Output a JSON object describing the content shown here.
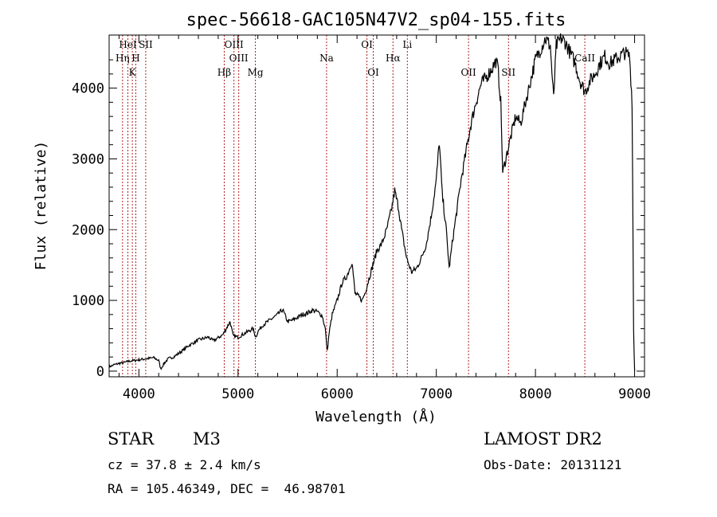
{
  "chart_data": {
    "type": "line",
    "title": "spec-56618-GAC105N47V2_sp04-155.fits",
    "xlabel": "Wavelength (Å)",
    "ylabel": "Flux (relative)",
    "xlim": [
      3700,
      9100
    ],
    "ylim": [
      -80,
      4750
    ],
    "x_ticks": [
      4000,
      5000,
      6000,
      7000,
      8000,
      9000
    ],
    "y_ticks": [
      0,
      1000,
      2000,
      3000,
      4000
    ],
    "grid": false,
    "series": [
      {
        "color": "#000000",
        "points": [
          [
            3700,
            60
          ],
          [
            3750,
            90
          ],
          [
            3800,
            110
          ],
          [
            3850,
            120
          ],
          [
            3900,
            140
          ],
          [
            3950,
            150
          ],
          [
            4000,
            160
          ],
          [
            4050,
            170
          ],
          [
            4100,
            180
          ],
          [
            4150,
            190
          ],
          [
            4200,
            150
          ],
          [
            4220,
            30
          ],
          [
            4260,
            120
          ],
          [
            4300,
            180
          ],
          [
            4350,
            200
          ],
          [
            4400,
            250
          ],
          [
            4450,
            300
          ],
          [
            4500,
            360
          ],
          [
            4550,
            400
          ],
          [
            4600,
            440
          ],
          [
            4650,
            460
          ],
          [
            4700,
            480
          ],
          [
            4750,
            430
          ],
          [
            4800,
            470
          ],
          [
            4850,
            520
          ],
          [
            4880,
            600
          ],
          [
            4920,
            700
          ],
          [
            4950,
            500
          ],
          [
            5000,
            480
          ],
          [
            5050,
            520
          ],
          [
            5100,
            560
          ],
          [
            5150,
            600
          ],
          [
            5180,
            480
          ],
          [
            5200,
            560
          ],
          [
            5250,
            650
          ],
          [
            5300,
            700
          ],
          [
            5350,
            750
          ],
          [
            5400,
            800
          ],
          [
            5450,
            870
          ],
          [
            5500,
            700
          ],
          [
            5550,
            720
          ],
          [
            5600,
            760
          ],
          [
            5650,
            800
          ],
          [
            5700,
            820
          ],
          [
            5750,
            860
          ],
          [
            5800,
            840
          ],
          [
            5850,
            780
          ],
          [
            5880,
            600
          ],
          [
            5900,
            280
          ],
          [
            5920,
            550
          ],
          [
            5950,
            800
          ],
          [
            6000,
            1000
          ],
          [
            6050,
            1250
          ],
          [
            6100,
            1350
          ],
          [
            6150,
            1550
          ],
          [
            6180,
            1100
          ],
          [
            6220,
            1050
          ],
          [
            6250,
            1000
          ],
          [
            6280,
            1100
          ],
          [
            6320,
            1300
          ],
          [
            6360,
            1500
          ],
          [
            6400,
            1700
          ],
          [
            6450,
            1800
          ],
          [
            6500,
            2000
          ],
          [
            6550,
            2300
          ],
          [
            6580,
            2550
          ],
          [
            6620,
            2300
          ],
          [
            6650,
            2000
          ],
          [
            6700,
            1600
          ],
          [
            6750,
            1400
          ],
          [
            6800,
            1450
          ],
          [
            6850,
            1600
          ],
          [
            6900,
            1800
          ],
          [
            6950,
            2200
          ],
          [
            7000,
            2700
          ],
          [
            7030,
            3250
          ],
          [
            7060,
            2500
          ],
          [
            7100,
            2000
          ],
          [
            7130,
            1450
          ],
          [
            7160,
            1800
          ],
          [
            7200,
            2200
          ],
          [
            7250,
            2700
          ],
          [
            7300,
            3100
          ],
          [
            7350,
            3500
          ],
          [
            7400,
            3800
          ],
          [
            7450,
            4050
          ],
          [
            7500,
            4150
          ],
          [
            7550,
            4250
          ],
          [
            7600,
            4380
          ],
          [
            7620,
            4300
          ],
          [
            7650,
            3800
          ],
          [
            7670,
            2800
          ],
          [
            7700,
            3000
          ],
          [
            7750,
            3300
          ],
          [
            7800,
            3600
          ],
          [
            7850,
            3500
          ],
          [
            7900,
            3800
          ],
          [
            7950,
            4100
          ],
          [
            8000,
            4400
          ],
          [
            8050,
            4550
          ],
          [
            8100,
            4700
          ],
          [
            8150,
            4600
          ],
          [
            8183,
            3850
          ],
          [
            8210,
            4600
          ],
          [
            8260,
            4700
          ],
          [
            8300,
            4650
          ],
          [
            8350,
            4500
          ],
          [
            8400,
            4350
          ],
          [
            8450,
            4100
          ],
          [
            8500,
            3950
          ],
          [
            8550,
            4100
          ],
          [
            8600,
            4200
          ],
          [
            8650,
            4350
          ],
          [
            8700,
            4450
          ],
          [
            8750,
            4350
          ],
          [
            8800,
            4400
          ],
          [
            8850,
            4450
          ],
          [
            8900,
            4500
          ],
          [
            8950,
            4450
          ],
          [
            8975,
            3800
          ],
          [
            8990,
            600
          ],
          [
            9000,
            0
          ]
        ]
      }
    ],
    "line_markers": [
      {
        "label": "HeI",
        "x": 3889,
        "row": 0
      },
      {
        "label": "SII",
        "x": 4069,
        "row": 0
      },
      {
        "label": "Hη",
        "x": 3835,
        "row": 1
      },
      {
        "label": "H",
        "x": 3969,
        "row": 1
      },
      {
        "label": "K",
        "x": 3934,
        "row": 2
      },
      {
        "label": "OIII",
        "x": 4959,
        "row": 0
      },
      {
        "label": "OIII",
        "x": 5007,
        "row": 1
      },
      {
        "label": "Hβ",
        "x": 4861,
        "row": 2
      },
      {
        "label": "Mg",
        "x": 5175,
        "row": 2
      },
      {
        "label": "Na",
        "x": 5893,
        "row": 1
      },
      {
        "label": "OI",
        "x": 6300,
        "row": 0
      },
      {
        "label": "OI",
        "x": 6364,
        "row": 2
      },
      {
        "label": "Hα",
        "x": 6563,
        "row": 1
      },
      {
        "label": "Li",
        "x": 6708,
        "row": 0
      },
      {
        "label": "OII",
        "x": 7325,
        "row": 2
      },
      {
        "label": "SII",
        "x": 7728,
        "row": 2
      },
      {
        "label": "CaII",
        "x": 8498,
        "row": 1
      }
    ],
    "marker_lines_x": [
      3835,
      3889,
      3934,
      3969,
      4069,
      4861,
      4959,
      5007,
      5175,
      5893,
      6300,
      6364,
      6563,
      6708,
      7325,
      7728,
      8498
    ]
  },
  "info": {
    "object_class": "STAR",
    "subclass": "M3",
    "survey": "LAMOST DR2",
    "redshift": "cz = 37.8 ± 2.4 km/s",
    "obs_date": "Obs-Date: 20131121",
    "coords": "RA = 105.46349, DEC =  46.98701"
  },
  "colors": {
    "spectrum": "#000000",
    "marker_line": "#b22222",
    "axes": "#000000"
  }
}
